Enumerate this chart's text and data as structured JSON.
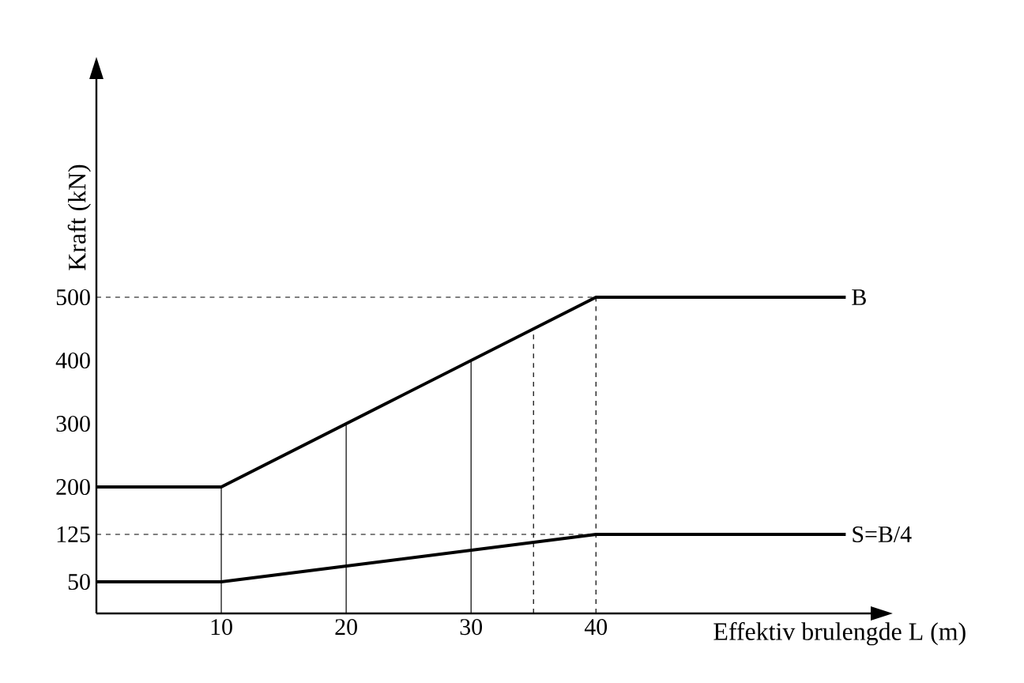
{
  "chart_data": {
    "type": "line",
    "xlabel": "Effektiv brulengde L (m)",
    "ylabel": "Kraft (kN)",
    "xlim": [
      0,
      62
    ],
    "ylim": [
      0,
      845
    ],
    "xticks": [
      10,
      20,
      30,
      40
    ],
    "yticks": [
      50,
      125,
      200,
      300,
      400,
      500
    ],
    "series": [
      {
        "name": "B",
        "color": "#000000",
        "x": [
          0,
          10,
          40,
          60
        ],
        "values": [
          200,
          200,
          500,
          500
        ]
      },
      {
        "name": "S=B/4",
        "color": "#000000",
        "x": [
          0,
          10,
          40,
          60
        ],
        "values": [
          50,
          50,
          125,
          125
        ]
      }
    ],
    "ref_lines": [
      {
        "axis": "y",
        "value": 500,
        "line_style": "dashed",
        "color": "#000000"
      },
      {
        "axis": "y",
        "value": 125,
        "line_style": "dashed",
        "color": "#000000"
      },
      {
        "axis": "x",
        "value": 10,
        "line_style": "solid",
        "color": "#000000"
      },
      {
        "axis": "x",
        "value": 20,
        "line_style": "solid",
        "color": "#000000"
      },
      {
        "axis": "x",
        "value": 30,
        "line_style": "solid",
        "color": "#000000"
      },
      {
        "axis": "x",
        "value": 35,
        "line_style": "dashed",
        "color": "#000000"
      },
      {
        "axis": "x",
        "value": 40,
        "line_style": "dashed",
        "color": "#000000"
      }
    ],
    "grid": false,
    "marker": "none",
    "line_style": "solid"
  }
}
